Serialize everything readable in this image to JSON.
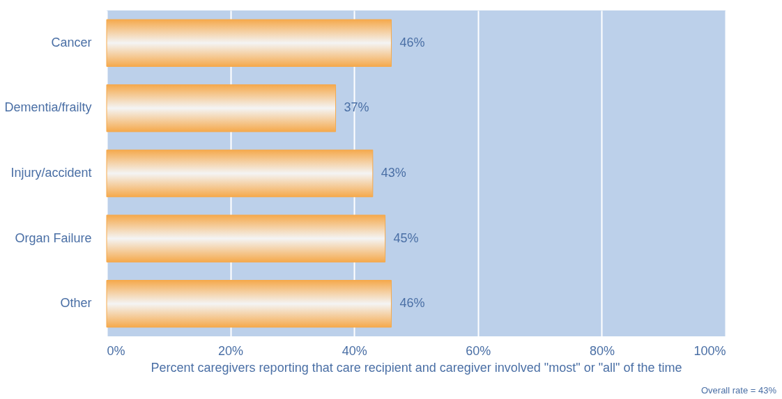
{
  "chart_data": {
    "type": "bar",
    "orientation": "horizontal",
    "categories": [
      "Cancer",
      "Dementia/frailty",
      "Injury/accident",
      "Organ Failure",
      "Other"
    ],
    "values": [
      46,
      37,
      43,
      45,
      46
    ],
    "value_labels": [
      "46%",
      "37%",
      "43%",
      "45%",
      "46%"
    ],
    "color": "#f5a94c",
    "xlabel": "Percent caregivers reporting that care recipient and caregiver involved \"most\" or \"all\" of the time",
    "xlim": [
      0,
      100
    ],
    "xticks": [
      {
        "value": 0,
        "label": "0%"
      },
      {
        "value": 20,
        "label": "20%"
      },
      {
        "value": 40,
        "label": "40%"
      },
      {
        "value": 60,
        "label": "60%"
      },
      {
        "value": 80,
        "label": "80%"
      },
      {
        "value": 100,
        "label": "100%"
      }
    ],
    "grid": "x",
    "annotations": [
      "Overall rate = 43%"
    ]
  }
}
